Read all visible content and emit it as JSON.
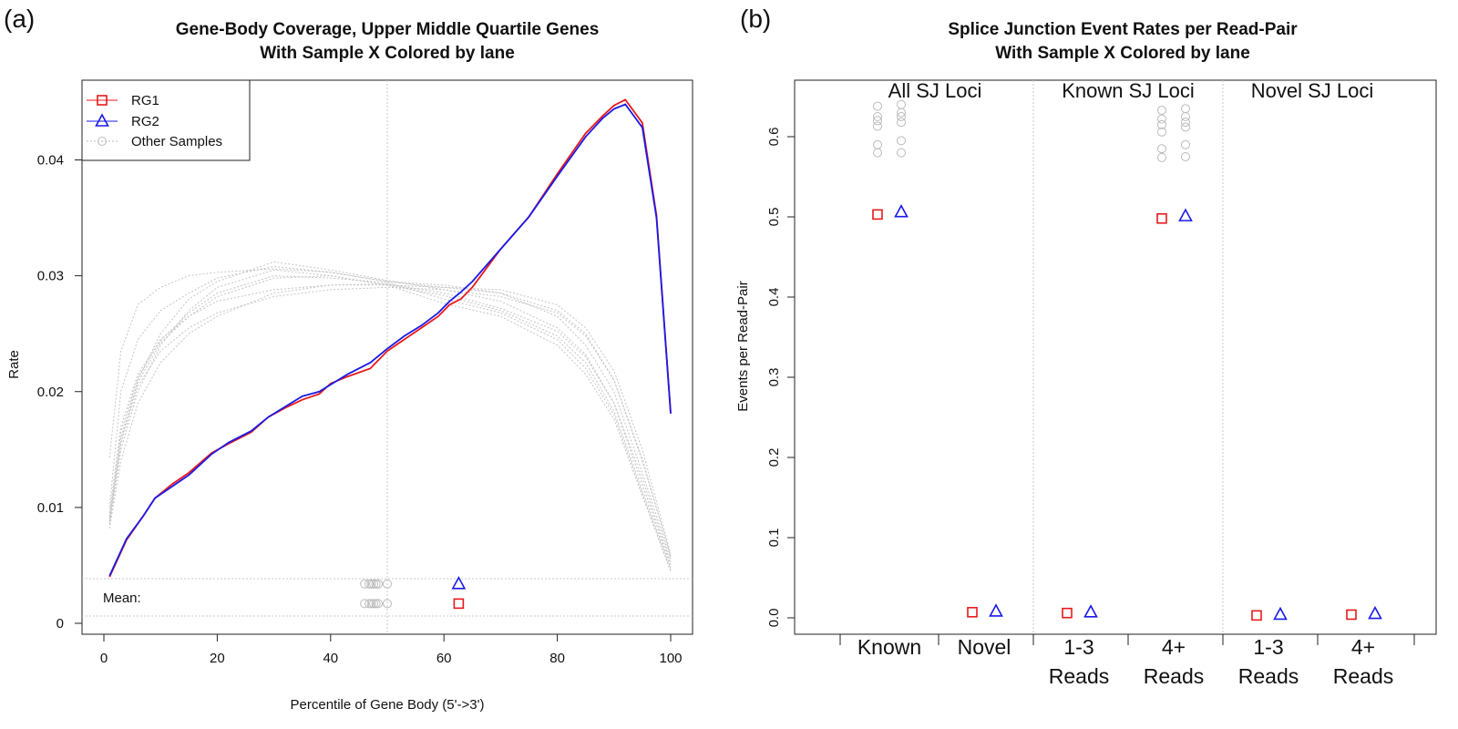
{
  "chart_data": [
    {
      "panel": "(a)",
      "type": "line",
      "title": [
        "Gene-Body Coverage, Upper Middle Quartile Genes",
        "With Sample X Colored by lane"
      ],
      "xlabel": "Percentile of Gene Body (5'->3')",
      "ylabel": "Rate",
      "xlim": [
        0,
        100
      ],
      "ylim": [
        0,
        0.045
      ],
      "xticks": [
        "0",
        "20",
        "40",
        "60",
        "80",
        "100"
      ],
      "yticks": [
        "0",
        "0.01",
        "0.02",
        "0.03",
        "0.04"
      ],
      "grid": false,
      "vline": 50,
      "legend": {
        "placement": "top-left",
        "entries": [
          {
            "label": "RG1",
            "color": "#e8191c",
            "marker": "square"
          },
          {
            "label": "RG2",
            "color": "#1a1ae8",
            "marker": "triangle"
          },
          {
            "label": "Other Samples",
            "color": "#bbbbbb",
            "marker": "circle"
          }
        ]
      },
      "series": [
        {
          "name": "RG1",
          "color": "#e8191c",
          "x": [
            1,
            4,
            7,
            9,
            12,
            15,
            19,
            22,
            26,
            29,
            32,
            35,
            38,
            40,
            43,
            47,
            50,
            53,
            56,
            59,
            61,
            63,
            65,
            70,
            75,
            80,
            85,
            88,
            90,
            92,
            95,
            97.5,
            100
          ],
          "y": [
            0.004,
            0.0072,
            0.0093,
            0.0108,
            0.012,
            0.013,
            0.0147,
            0.0155,
            0.0165,
            0.0178,
            0.0186,
            0.0193,
            0.0198,
            0.0207,
            0.0213,
            0.022,
            0.0235,
            0.0245,
            0.0255,
            0.0265,
            0.0275,
            0.028,
            0.029,
            0.0323,
            0.0351,
            0.0388,
            0.0423,
            0.0438,
            0.0447,
            0.0452,
            0.0432,
            0.0352,
            0.0182
          ]
        },
        {
          "name": "RG2",
          "color": "#1a1ae8",
          "x": [
            1,
            4,
            7,
            9,
            12,
            15,
            19,
            22,
            26,
            29,
            32,
            35,
            38,
            40,
            43,
            47,
            50,
            53,
            56,
            59,
            61,
            63,
            65,
            70,
            75,
            80,
            85,
            88,
            90,
            92,
            95,
            97.5,
            100
          ],
          "y": [
            0.0041,
            0.0073,
            0.0093,
            0.0108,
            0.0118,
            0.0128,
            0.0146,
            0.0156,
            0.0166,
            0.0178,
            0.0187,
            0.0196,
            0.02,
            0.0206,
            0.0215,
            0.0225,
            0.0237,
            0.0248,
            0.0257,
            0.0268,
            0.0278,
            0.0286,
            0.0295,
            0.0323,
            0.0351,
            0.0386,
            0.042,
            0.0436,
            0.0444,
            0.0448,
            0.0428,
            0.035,
            0.0181
          ]
        }
      ],
      "other_samples": [
        {
          "x": [
            1,
            3,
            6,
            10,
            15,
            20,
            30,
            40,
            50,
            60,
            70,
            80,
            85,
            90,
            95,
            100
          ],
          "y": [
            0.0143,
            0.0235,
            0.0275,
            0.029,
            0.03,
            0.0303,
            0.0306,
            0.0303,
            0.0295,
            0.029,
            0.0285,
            0.0265,
            0.024,
            0.02,
            0.013,
            0.0055
          ]
        },
        {
          "x": [
            1,
            3,
            6,
            10,
            15,
            20,
            30,
            40,
            50,
            60,
            70,
            80,
            85,
            90,
            95,
            100
          ],
          "y": [
            0.01,
            0.02,
            0.0245,
            0.027,
            0.0285,
            0.0298,
            0.0308,
            0.0303,
            0.0295,
            0.0292,
            0.0285,
            0.027,
            0.025,
            0.021,
            0.014,
            0.0058
          ]
        },
        {
          "x": [
            1,
            3,
            6,
            10,
            15,
            20,
            30,
            40,
            50,
            60,
            70,
            80,
            85,
            90,
            95,
            100
          ],
          "y": [
            0.009,
            0.016,
            0.021,
            0.025,
            0.028,
            0.0295,
            0.0312,
            0.0305,
            0.0296,
            0.0288,
            0.0278,
            0.0255,
            0.0232,
            0.019,
            0.012,
            0.005
          ]
        },
        {
          "x": [
            1,
            3,
            6,
            10,
            15,
            20,
            30,
            40,
            50,
            60,
            70,
            80,
            85,
            90,
            95,
            100
          ],
          "y": [
            0.0085,
            0.015,
            0.02,
            0.024,
            0.027,
            0.029,
            0.0305,
            0.03,
            0.0292,
            0.0283,
            0.027,
            0.0248,
            0.0225,
            0.0183,
            0.0115,
            0.0048
          ]
        },
        {
          "x": [
            1,
            3,
            6,
            10,
            15,
            20,
            30,
            40,
            50,
            60,
            70,
            80,
            85,
            90,
            95,
            100
          ],
          "y": [
            0.0095,
            0.017,
            0.0215,
            0.0245,
            0.0265,
            0.0278,
            0.0288,
            0.0292,
            0.0292,
            0.029,
            0.0288,
            0.0275,
            0.0255,
            0.0218,
            0.015,
            0.006
          ]
        },
        {
          "x": [
            1,
            3,
            6,
            10,
            15,
            20,
            30,
            40,
            50,
            60,
            70,
            80,
            85,
            90,
            95,
            100
          ],
          "y": [
            0.0088,
            0.0155,
            0.0205,
            0.0235,
            0.0255,
            0.0268,
            0.0282,
            0.0288,
            0.029,
            0.0288,
            0.0282,
            0.0268,
            0.0248,
            0.021,
            0.0142,
            0.0057
          ]
        },
        {
          "x": [
            1,
            3,
            6,
            10,
            15,
            20,
            30,
            40,
            50,
            60,
            70,
            80,
            85,
            90,
            95,
            100
          ],
          "y": [
            0.0082,
            0.014,
            0.019,
            0.0225,
            0.025,
            0.0265,
            0.0285,
            0.0292,
            0.0293,
            0.0285,
            0.0272,
            0.0252,
            0.023,
            0.019,
            0.0125,
            0.0052
          ]
        },
        {
          "x": [
            1,
            3,
            6,
            10,
            15,
            20,
            30,
            40,
            50,
            60,
            70,
            80,
            85,
            90,
            95,
            100
          ],
          "y": [
            0.0092,
            0.0165,
            0.0212,
            0.0244,
            0.0268,
            0.0285,
            0.03,
            0.0298,
            0.0294,
            0.028,
            0.0268,
            0.0245,
            0.022,
            0.018,
            0.0112,
            0.0046
          ]
        },
        {
          "x": [
            1,
            3,
            6,
            10,
            15,
            20,
            30,
            40,
            50,
            60,
            70,
            80,
            85,
            90,
            95,
            100
          ],
          "y": [
            0.0087,
            0.0158,
            0.0208,
            0.0242,
            0.0265,
            0.0282,
            0.0298,
            0.03,
            0.0292,
            0.0276,
            0.0265,
            0.024,
            0.0215,
            0.0176,
            0.011,
            0.0045
          ]
        }
      ],
      "mean_label": "Mean:",
      "mean_markers": {
        "other_samples_row_a": [
          46,
          46.8,
          47.2,
          47.6,
          48,
          48.4,
          50
        ],
        "other_samples_row_b": [
          46,
          46.8,
          47.2,
          47.6,
          48,
          48.4,
          50
        ],
        "RG1": 62.6,
        "RG2": 62.6,
        "row_values": [
          0.0034,
          0.0017
        ]
      }
    },
    {
      "panel": "(b)",
      "type": "scatter",
      "title": [
        "Splice Junction Event Rates per Read-Pair",
        "With Sample X Colored by lane"
      ],
      "ylabel": "Events per Read-Pair",
      "ylim": [
        0,
        0.65
      ],
      "yticks": [
        "0.0",
        "0.1",
        "0.2",
        "0.3",
        "0.4",
        "0.5",
        "0.6"
      ],
      "grid": false,
      "groups": [
        "All SJ Loci",
        "Known SJ Loci",
        "Novel SJ Loci"
      ],
      "categories": [
        {
          "line1": "Known",
          "line2": ""
        },
        {
          "line1": "Novel",
          "line2": ""
        },
        {
          "line1": "1-3",
          "line2": "Reads"
        },
        {
          "line1": "4+",
          "line2": "Reads"
        },
        {
          "line1": "1-3",
          "line2": "Reads"
        },
        {
          "line1": "4+",
          "line2": "Reads"
        }
      ],
      "series": [
        {
          "name": "RG1",
          "color": "#e8191c",
          "marker": "square",
          "values": [
            0.503,
            0.007,
            0.006,
            0.498,
            0.003,
            0.004
          ]
        },
        {
          "name": "RG2",
          "color": "#1a1ae8",
          "marker": "triangle",
          "values": [
            0.506,
            0.008,
            0.007,
            0.501,
            0.004,
            0.005
          ]
        }
      ],
      "other_samples": {
        "color": "#bbbbbb",
        "marker": "circle",
        "values_left": [
          [
            0.638,
            0.625,
            0.62,
            0.613,
            0.59,
            0.58
          ],
          [],
          [],
          [
            0.633,
            0.622,
            0.615,
            0.606,
            0.585,
            0.574
          ],
          [],
          []
        ],
        "values_right": [
          [
            0.64,
            0.63,
            0.625,
            0.618,
            0.595,
            0.58
          ],
          [],
          [],
          [
            0.635,
            0.625,
            0.618,
            0.612,
            0.59,
            0.575
          ],
          [],
          []
        ]
      }
    }
  ]
}
